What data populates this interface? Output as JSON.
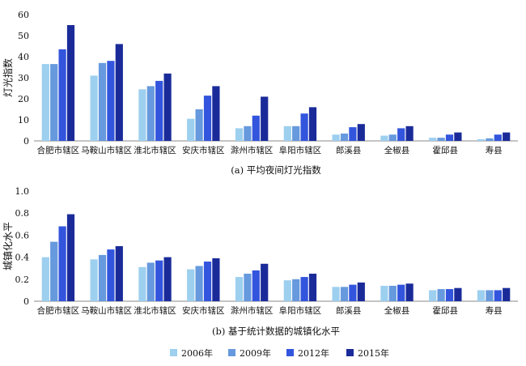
{
  "chart_data": [
    {
      "type": "bar",
      "caption": "(a) 平均夜间灯光指数",
      "ylabel": "灯光指数",
      "ylim": [
        0,
        60
      ],
      "yticks": [
        0,
        10,
        20,
        30,
        40,
        50,
        60
      ],
      "categories": [
        "合肥市辖区",
        "马鞍山市辖区",
        "淮北市辖区",
        "安庆市辖区",
        "滁州市辖区",
        "阜阳市辖区",
        "郎溪县",
        "全椒县",
        "霍邱县",
        "寿县"
      ],
      "series": [
        {
          "name": "2006年",
          "values": [
            36.5,
            31,
            24.5,
            10.5,
            6,
            7,
            3,
            2.5,
            1.5,
            0.8
          ]
        },
        {
          "name": "2009年",
          "values": [
            36.5,
            37,
            26,
            15,
            7,
            7,
            3.5,
            3,
            1.5,
            1.2
          ]
        },
        {
          "name": "2012年",
          "values": [
            43.5,
            38,
            28.5,
            21.5,
            12,
            13,
            6.5,
            6,
            3,
            3
          ]
        },
        {
          "name": "2015年",
          "values": [
            55,
            46,
            32,
            26,
            21,
            16,
            8,
            7,
            4,
            4
          ]
        }
      ]
    },
    {
      "type": "bar",
      "caption": "(b) 基于统计数据的城镇化水平",
      "ylabel": "城镇化水平",
      "ylim": [
        0,
        1.0
      ],
      "yticks": [
        "0",
        "0.2",
        "0.4",
        "0.6",
        "0.8",
        "1.0"
      ],
      "categories": [
        "合肥市辖区",
        "马鞍山市辖区",
        "淮北市辖区",
        "安庆市辖区",
        "滁州市辖区",
        "阜阳市辖区",
        "郎溪县",
        "全椒县",
        "霍邱县",
        "寿县"
      ],
      "series": [
        {
          "name": "2006年",
          "values": [
            0.4,
            0.38,
            0.31,
            0.29,
            0.22,
            0.19,
            0.13,
            0.14,
            0.1,
            0.1
          ]
        },
        {
          "name": "2009年",
          "values": [
            0.54,
            0.42,
            0.35,
            0.32,
            0.25,
            0.2,
            0.13,
            0.14,
            0.11,
            0.1
          ]
        },
        {
          "name": "2012年",
          "values": [
            0.68,
            0.47,
            0.37,
            0.36,
            0.28,
            0.22,
            0.15,
            0.15,
            0.11,
            0.1
          ]
        },
        {
          "name": "2015年",
          "values": [
            0.79,
            0.5,
            0.4,
            0.39,
            0.34,
            0.25,
            0.17,
            0.16,
            0.12,
            0.12
          ]
        }
      ]
    }
  ],
  "legend": {
    "position": "bottom",
    "items": [
      {
        "label": "2006年",
        "color": "#9dcfef"
      },
      {
        "label": "2009年",
        "color": "#6699dd"
      },
      {
        "label": "2012年",
        "color": "#3355dd"
      },
      {
        "label": "2015年",
        "color": "#1a2b99"
      }
    ]
  }
}
